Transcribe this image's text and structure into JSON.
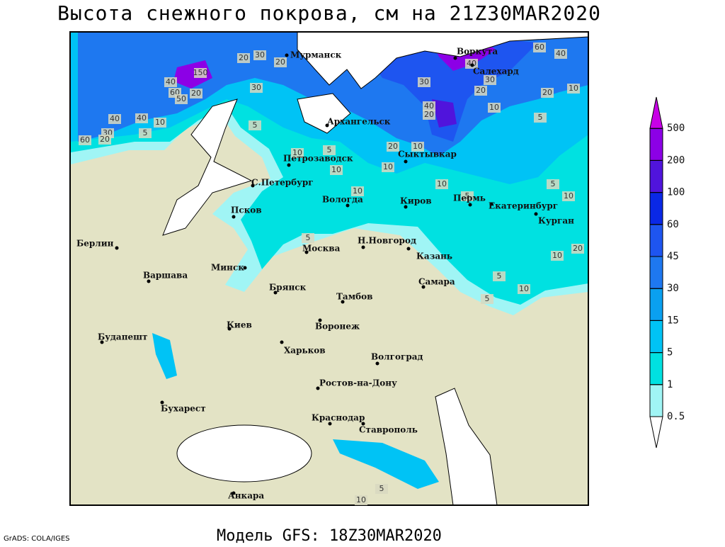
{
  "title": "Высота снежного покрова, см на 21Z30MAR2020",
  "footer": "Модель GFS: 18Z30MAR2020",
  "credit": "GrADS: COLA/IGES",
  "colorbar": {
    "levels": [
      0.5,
      1,
      5,
      15,
      30,
      45,
      60,
      100,
      200,
      500
    ],
    "colors": [
      "#ffffff",
      "#a0f5f5",
      "#00e1e1",
      "#00c3f5",
      "#0aa0f0",
      "#1e78f0",
      "#1e55f0",
      "#0a28e6",
      "#5014dc",
      "#8c00e6",
      "#c800e6"
    ]
  },
  "cities": [
    "Мурманск",
    "Воркута",
    "Салехард",
    "Архангельск",
    "Петрозаводск",
    "Сыктывкар",
    "С.Петербург",
    "Вологда",
    "Киров",
    "Пермь",
    "Екатеринбург",
    "Курган",
    "Псков",
    "Берлин",
    "Н.Новгород",
    "Москва",
    "Казань",
    "Минск",
    "Варшава",
    "Брянск",
    "Самара",
    "Тамбов",
    "Киев",
    "Воронеж",
    "Будапешт",
    "Харьков",
    "Волгоград",
    "Ростов-на-Дону",
    "Бухарест",
    "Краснодар",
    "Ставрополь",
    "Анкара"
  ],
  "contour_labels": [
    60,
    40,
    30,
    20,
    20,
    150,
    40,
    60,
    20,
    50,
    30,
    30,
    40,
    30,
    20,
    20,
    10,
    10,
    5,
    40,
    20,
    40,
    40,
    10,
    30,
    20,
    60,
    5,
    5,
    5,
    10,
    20,
    10,
    10,
    10,
    10,
    10,
    5,
    5,
    10,
    10,
    20,
    5,
    5,
    10,
    5,
    5,
    10
  ]
}
